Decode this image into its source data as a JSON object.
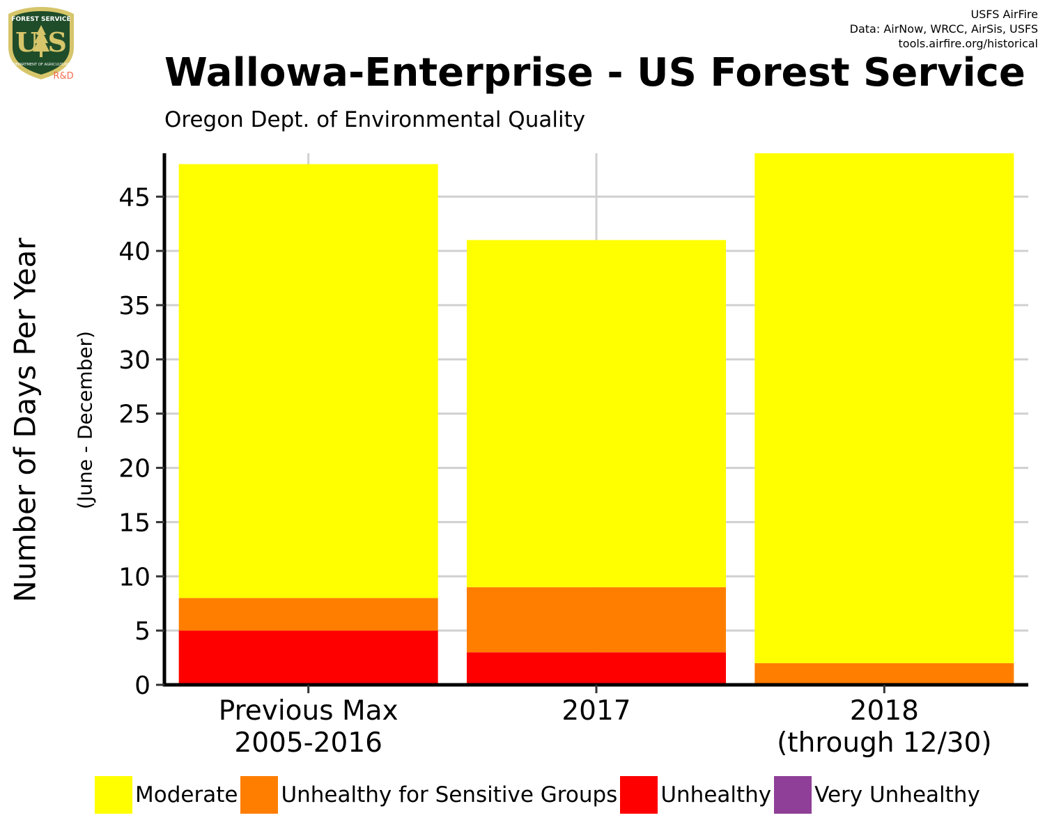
{
  "logo": {
    "name": "usfs-shield-logo",
    "top_text": "FOREST SERVICE",
    "letters": "U S",
    "bottom_text": "DEPARTMENT OF AGRICULTURE",
    "tag": "R&D",
    "colors": {
      "shield": "#1f4d2a",
      "rim": "#d6c56a",
      "accent": "#f36b50"
    }
  },
  "credits": [
    "USFS AirFire",
    "Data: AirNow, WRCC, AirSis, USFS",
    "tools.airfire.org/historical"
  ],
  "chart_data": {
    "type": "bar",
    "stacked": true,
    "title": "Wallowa-Enterprise - US Forest Service",
    "subtitle": "Oregon Dept. of Environmental Quality",
    "ylabel": "Number of Days Per Year",
    "ylabel_sub": "(June - December)",
    "xlabel": "",
    "categories": [
      [
        "Previous Max",
        "2005-2016"
      ],
      [
        "2017"
      ],
      [
        "2018",
        "(through 12/30)"
      ]
    ],
    "yticks": [
      0,
      5,
      10,
      15,
      20,
      25,
      30,
      35,
      40,
      45
    ],
    "ylim": [
      0,
      49
    ],
    "grid": true,
    "legend_position": "bottom",
    "series": [
      {
        "name": "Moderate",
        "color": "#ffff00",
        "values": [
          40,
          32,
          47
        ]
      },
      {
        "name": "Unhealthy for Sensitive Groups",
        "color": "#ff7e00",
        "values": [
          3,
          6,
          2
        ]
      },
      {
        "name": "Unhealthy",
        "color": "#ff0000",
        "values": [
          5,
          3,
          0
        ]
      },
      {
        "name": "Very Unhealthy",
        "color": "#8f3f97",
        "values": [
          0,
          0,
          0
        ]
      }
    ]
  }
}
